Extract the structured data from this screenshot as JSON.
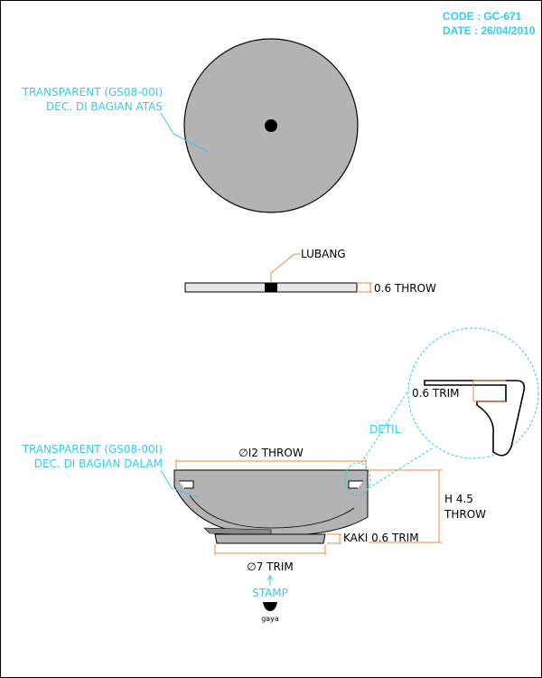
{
  "header": {
    "code": "CODE : GC-671",
    "date": "DATE : 26/04/2010"
  },
  "top_view": {
    "label_line1": "TRANSPARENT (GS08-00I)",
    "label_line2": "DEC. DI BAGIAN ATAS"
  },
  "side_view": {
    "hole_label": "LUBANG",
    "thickness_label": "0.6 THROW"
  },
  "section_view": {
    "label_line1": "TRANSPARENT (GS08-00I)",
    "label_line2": "DEC. DI BAGIAN DALAM",
    "diameter_label": "∅I2 THROW",
    "height_label_line1": "H 4.5",
    "height_label_line2": "THROW",
    "foot_label": "KAKI 0.6 TRIM",
    "base_label": "∅7 TRIM",
    "detail_label": "DETIL",
    "detail_trim_label": "0.6 TRIM"
  },
  "stamp": {
    "label": "STAMP",
    "brand": "gaya"
  },
  "colors": {
    "fill_gray": "#b3b3b3",
    "accent_cyan": "#33ccee",
    "dimension_orange": "#f08a3c",
    "line_black": "#000000"
  }
}
